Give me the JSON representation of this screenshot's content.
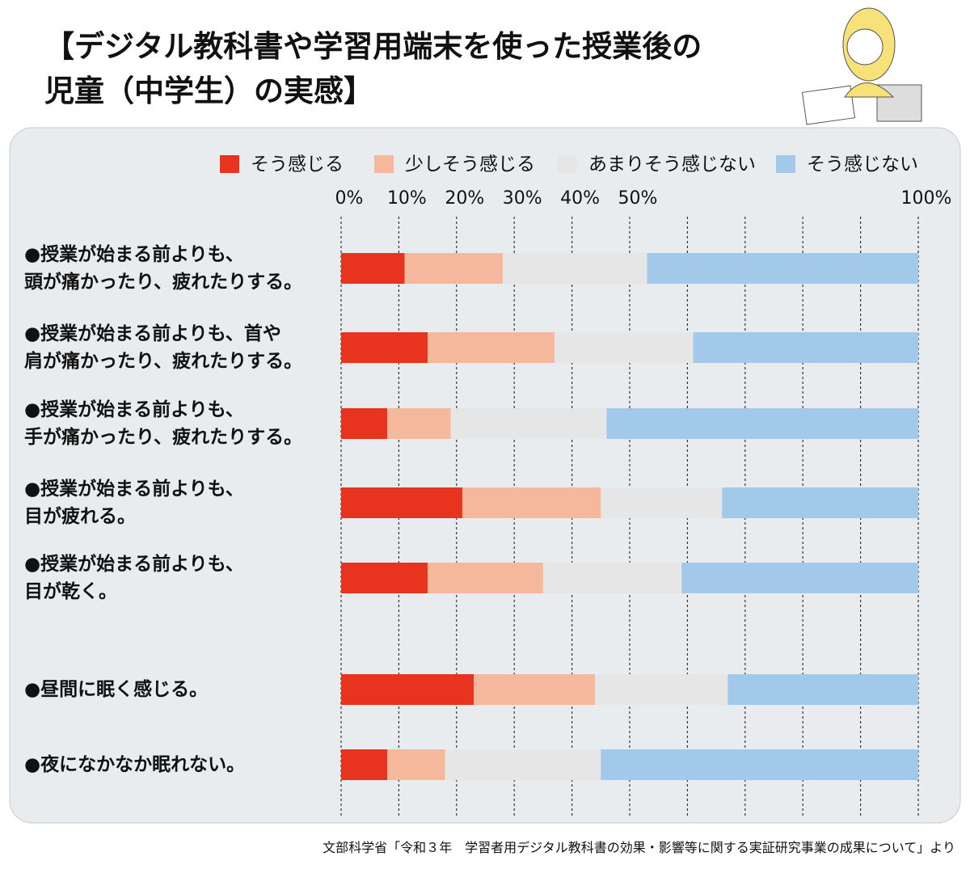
{
  "chart_data": {
    "type": "stacked-bar-horizontal",
    "title": "【デジタル教科書や学習用端末を使った授業後の\n児童（中学生）の実感】",
    "source": "文部科学省「令和３年　学習者用デジタル教科書の効果・影響等に関する実証研究事業の成果について」より",
    "categories": [
      "●授業が始まる前よりも、\n頭が痛かったり、疲れたりする。",
      "●授業が始まる前よりも、首や\n肩が痛かったり、疲れたりする。",
      "●授業が始まる前よりも、\n手が痛かったり、疲れたりする。",
      "●授業が始まる前よりも、\n目が疲れる。",
      "●授業が始まる前よりも、\n目が乾く。",
      "●昼間に眠く感じる。",
      "●夜になかなか眠れない。"
    ],
    "series": [
      {
        "name": "そう感じる",
        "color": "#e8331f",
        "values": [
          11,
          15,
          8,
          21,
          15,
          23,
          8
        ]
      },
      {
        "name": "少しそう感じる",
        "color": "#f5b89c",
        "values": [
          17,
          22,
          11,
          24,
          20,
          21,
          10
        ]
      },
      {
        "name": "あまりそう感じない",
        "color": "#e6e6e6",
        "values": [
          25,
          24,
          27,
          21,
          24,
          23,
          27
        ]
      },
      {
        "name": "そう感じない",
        "color": "#a2c9ea",
        "values": [
          47,
          39,
          54,
          34,
          41,
          33,
          55
        ]
      }
    ],
    "xlim": [
      0,
      100
    ],
    "xticks": [
      {
        "value": 0,
        "label": "0%"
      },
      {
        "value": 10,
        "label": "10%"
      },
      {
        "value": 20,
        "label": "20%"
      },
      {
        "value": 30,
        "label": "30%"
      },
      {
        "value": 40,
        "label": "40%"
      },
      {
        "value": 50,
        "label": "50%"
      },
      {
        "value": 60,
        "label": null
      },
      {
        "value": 70,
        "label": null
      },
      {
        "value": 80,
        "label": null
      },
      {
        "value": 90,
        "label": null
      },
      {
        "value": 100,
        "label": "100%"
      }
    ],
    "grid": true
  }
}
